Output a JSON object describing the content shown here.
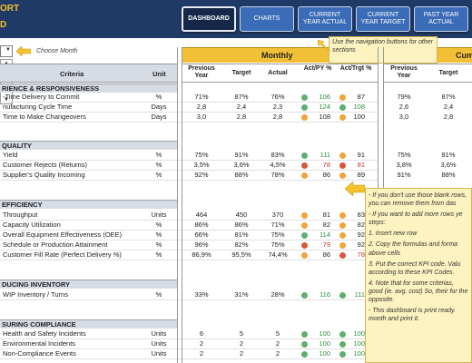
{
  "header": {
    "title_line1": "ORT",
    "title_line2": "D",
    "nav": [
      {
        "label": "DASHBOARD",
        "active": true
      },
      {
        "label": "CHARTS",
        "active": false
      },
      {
        "label": "CURRENT YEAR ACTUAL",
        "active": false
      },
      {
        "label": "CURRENT YEAR TARGET",
        "active": false
      },
      {
        "label": "PAST YEAR ACTUAL",
        "active": false
      }
    ]
  },
  "month_picker": {
    "label": "Choose Month"
  },
  "callouts": {
    "nav_hint": "Use the navigation buttons for other sections",
    "instructions": [
      "- If you don't use those blank rows, you can remove them from das",
      "- If you want to add more rows ye steps:",
      "1. Insert new row",
      "2. Copy the formulas and forma above cells",
      "3. Put the correct KPI code. Valu according to these KPI Codes.",
      "4. Note that for some criterias, good (ie. avg. cost) So, their for the opposite.",
      "- This dashboard is print ready. month and print it."
    ]
  },
  "table": {
    "monthly_title": "Monthly",
    "cumulative_title": "Cum",
    "columns": {
      "criteria": "Criteria",
      "unit": "Unit",
      "previous_year": "Previous Year",
      "target": "Target",
      "actual": "Actual",
      "act_py": "Act/PY %",
      "act_trgt": "Act/Trgt %",
      "cum_previous_year": "Previous Year",
      "cum_target": "Target"
    },
    "sections": [
      {
        "name": "RIENCE & RESPONSIVENESS",
        "rows": [
          {
            "criteria": "-Time Delivery to Commit",
            "unit": "%",
            "py": "71%",
            "target": "87%",
            "actual": "76%",
            "py_dot": "g",
            "py_pct": "106",
            "py_pct_color": "green",
            "t_dot": "o",
            "t_pct": "87",
            "t_pct_color": "",
            "cum_py": "79%",
            "cum_target": "87%"
          },
          {
            "criteria": "nufacturing Cycle Time",
            "unit": "Days",
            "py": "2,8",
            "target": "2,4",
            "actual": "2,3",
            "py_dot": "g",
            "py_pct": "124",
            "py_pct_color": "green",
            "t_dot": "g",
            "t_pct": "108",
            "t_pct_color": "green",
            "cum_py": "2,6",
            "cum_target": "2,4"
          },
          {
            "criteria": "Time to Make Changeovers",
            "unit": "Days",
            "py": "3,0",
            "target": "2,8",
            "actual": "2,8",
            "py_dot": "o",
            "py_pct": "108",
            "py_pct_color": "",
            "t_dot": "o",
            "t_pct": "100",
            "t_pct_color": "",
            "cum_py": "3,0",
            "cum_target": "2,8"
          }
        ]
      },
      {
        "name": "QUALITY",
        "rows": [
          {
            "criteria": "Yield",
            "unit": "%",
            "py": "75%",
            "target": "91%",
            "actual": "83%",
            "py_dot": "g",
            "py_pct": "111",
            "py_pct_color": "green",
            "t_dot": "o",
            "t_pct": "91",
            "t_pct_color": "",
            "cum_py": "75%",
            "cum_target": "91%"
          },
          {
            "criteria": "Customer Rejects (Returns)",
            "unit": "%",
            "py": "3,5%",
            "target": "3,6%",
            "actual": "4,5%",
            "py_dot": "r",
            "py_pct": "78",
            "py_pct_color": "red",
            "t_dot": "r",
            "t_pct": "81",
            "t_pct_color": "red",
            "cum_py": "3,8%",
            "cum_target": "3,6%"
          },
          {
            "criteria": "Supplier's Quality Incoming",
            "unit": "%",
            "py": "92%",
            "target": "88%",
            "actual": "78%",
            "py_dot": "o",
            "py_pct": "86",
            "py_pct_color": "",
            "t_dot": "o",
            "t_pct": "89",
            "t_pct_color": "",
            "cum_py": "91%",
            "cum_target": "88%"
          }
        ]
      },
      {
        "name": "EFFICIENCY",
        "rows": [
          {
            "criteria": "Throughput",
            "unit": "Units",
            "py": "464",
            "target": "450",
            "actual": "370",
            "py_dot": "o",
            "py_pct": "81",
            "py_pct_color": "",
            "t_dot": "o",
            "t_pct": "83",
            "t_pct_color": "",
            "cum_py": "",
            "cum_target": ""
          },
          {
            "criteria": "Capacity Utilization",
            "unit": "%",
            "py": "86%",
            "target": "86%",
            "actual": "71%",
            "py_dot": "o",
            "py_pct": "82",
            "py_pct_color": "",
            "t_dot": "o",
            "t_pct": "82",
            "t_pct_color": "",
            "cum_py": "",
            "cum_target": ""
          },
          {
            "criteria": "Overall Equipment Effectiveness (OEE)",
            "unit": "%",
            "py": "66%",
            "target": "81%",
            "actual": "75%",
            "py_dot": "g",
            "py_pct": "114",
            "py_pct_color": "green",
            "t_dot": "o",
            "t_pct": "92",
            "t_pct_color": "",
            "cum_py": "",
            "cum_target": ""
          },
          {
            "criteria": "Schedule or Production Attainment",
            "unit": "%",
            "py": "96%",
            "target": "82%",
            "actual": "75%",
            "py_dot": "r",
            "py_pct": "79",
            "py_pct_color": "red",
            "t_dot": "o",
            "t_pct": "92",
            "t_pct_color": "",
            "cum_py": "",
            "cum_target": ""
          },
          {
            "criteria": "Customer Fill Rate (Perfect Delivery %)",
            "unit": "%",
            "py": "86,9%",
            "target": "95,5%",
            "actual": "74,4%",
            "py_dot": "o",
            "py_pct": "86",
            "py_pct_color": "",
            "t_dot": "r",
            "t_pct": "78",
            "t_pct_color": "red",
            "cum_py": "",
            "cum_target": ""
          }
        ]
      },
      {
        "name": "DUCING INVENTORY",
        "rows": [
          {
            "criteria": "WIP Inventory / Turns",
            "unit": "%",
            "py": "33%",
            "target": "31%",
            "actual": "28%",
            "py_dot": "g",
            "py_pct": "116",
            "py_pct_color": "green",
            "t_dot": "g",
            "t_pct": "111",
            "t_pct_color": "green",
            "cum_py": "",
            "cum_target": ""
          }
        ]
      },
      {
        "name": "SURING COMPLIANCE",
        "rows": [
          {
            "criteria": "Health and Safety Incidents",
            "unit": "Units",
            "py": "6",
            "target": "5",
            "actual": "5",
            "py_dot": "g",
            "py_pct": "100",
            "py_pct_color": "green",
            "t_dot": "g",
            "t_pct": "100",
            "t_pct_color": "green",
            "cum_py": "",
            "cum_target": ""
          },
          {
            "criteria": "Environmental Incidents",
            "unit": "Units",
            "py": "2",
            "target": "2",
            "actual": "2",
            "py_dot": "g",
            "py_pct": "100",
            "py_pct_color": "green",
            "t_dot": "g",
            "t_pct": "100",
            "t_pct_color": "green",
            "cum_py": "",
            "cum_target": ""
          },
          {
            "criteria": "Non-Compliance Events",
            "unit": "Units",
            "py": "2",
            "target": "2",
            "actual": "2",
            "py_dot": "g",
            "py_pct": "100",
            "py_pct_color": "green",
            "t_dot": "g",
            "t_pct": "100",
            "t_pct_color": "green",
            "cum_py": "",
            "cum_target": ""
          }
        ]
      }
    ]
  }
}
